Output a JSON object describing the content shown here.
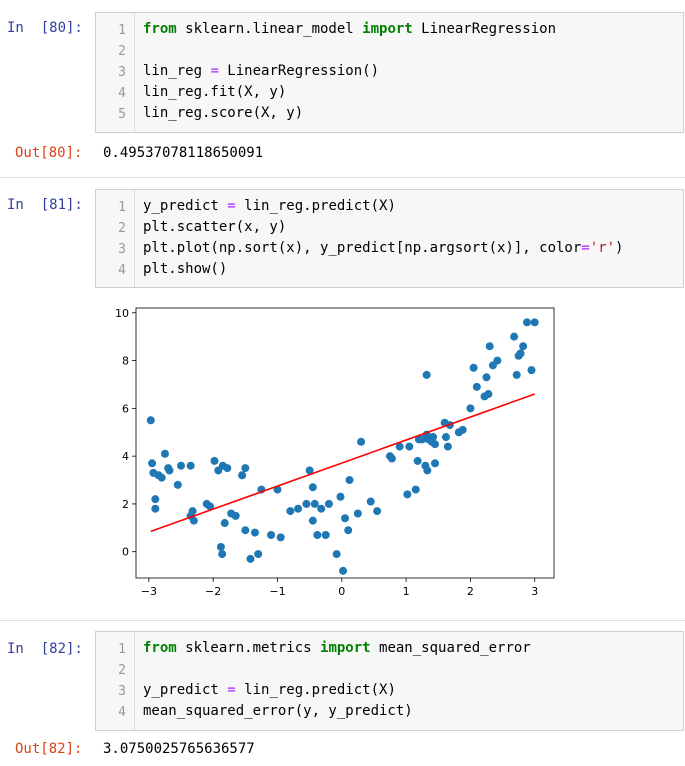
{
  "cells": [
    {
      "in_prompt": "In  [80]:",
      "line_numbers": [
        "1",
        "2",
        "3",
        "4",
        "5"
      ],
      "code": [
        [
          {
            "t": "from",
            "c": "kw"
          },
          {
            "t": " sklearn.linear_model ",
            "c": ""
          },
          {
            "t": "import",
            "c": "kw"
          },
          {
            "t": " LinearRegression",
            "c": ""
          }
        ],
        [],
        [
          {
            "t": "lin_reg ",
            "c": ""
          },
          {
            "t": "=",
            "c": "op"
          },
          {
            "t": " LinearRegression()",
            "c": ""
          }
        ],
        [
          {
            "t": "lin_reg.fit(X, y)",
            "c": ""
          }
        ],
        [
          {
            "t": "lin_reg.score(X, y)",
            "c": ""
          }
        ]
      ],
      "out_prompt": "Out[80]:",
      "output": "0.49537078118650091"
    },
    {
      "in_prompt": "In  [81]:",
      "line_numbers": [
        "1",
        "2",
        "3",
        "4"
      ],
      "code": [
        [
          {
            "t": "y_predict ",
            "c": ""
          },
          {
            "t": "=",
            "c": "op"
          },
          {
            "t": " lin_reg.predict(X)",
            "c": ""
          }
        ],
        [
          {
            "t": "plt.scatter(x, y)",
            "c": ""
          }
        ],
        [
          {
            "t": "plt.plot(np.sort(x), y_predict[np.argsort(x)], color",
            "c": ""
          },
          {
            "t": "=",
            "c": "op"
          },
          {
            "t": "'r'",
            "c": "str"
          },
          {
            "t": ")",
            "c": ""
          }
        ],
        [
          {
            "t": "plt.show()",
            "c": ""
          }
        ]
      ]
    },
    {
      "in_prompt": "In  [82]:",
      "line_numbers": [
        "1",
        "2",
        "3",
        "4"
      ],
      "code": [
        [
          {
            "t": "from",
            "c": "kw"
          },
          {
            "t": " sklearn.metrics ",
            "c": ""
          },
          {
            "t": "import",
            "c": "kw"
          },
          {
            "t": " mean_squared_error",
            "c": ""
          }
        ],
        [],
        [
          {
            "t": "y_predict ",
            "c": ""
          },
          {
            "t": "=",
            "c": "op"
          },
          {
            "t": " lin_reg.predict(X)",
            "c": ""
          }
        ],
        [
          {
            "t": "mean_squared_error(y, y_predict)",
            "c": ""
          }
        ]
      ],
      "out_prompt": "Out[82]:",
      "output": "3.0750025765636577"
    }
  ],
  "colors": {
    "scatter": "#1f77b4",
    "line": "#ff0000",
    "in_prompt": "#303f9f",
    "out_prompt": "#d84315"
  },
  "chart_data": {
    "type": "scatter",
    "xlim": [
      -3.2,
      3.3
    ],
    "ylim": [
      -1.1,
      10.2
    ],
    "xticks": [
      -3,
      -2,
      -1,
      0,
      1,
      2,
      3
    ],
    "yticks": [
      0,
      2,
      4,
      6,
      8,
      10
    ],
    "grid": false,
    "points": [
      [
        -2.97,
        5.5
      ],
      [
        -2.95,
        3.7
      ],
      [
        -2.93,
        3.3
      ],
      [
        -2.9,
        2.2
      ],
      [
        -2.9,
        1.8
      ],
      [
        -2.85,
        3.2
      ],
      [
        -2.8,
        3.1
      ],
      [
        -2.75,
        4.1
      ],
      [
        -2.7,
        3.5
      ],
      [
        -2.68,
        3.4
      ],
      [
        -2.55,
        2.8
      ],
      [
        -2.5,
        3.6
      ],
      [
        -2.35,
        3.6
      ],
      [
        -2.35,
        1.5
      ],
      [
        -2.32,
        1.7
      ],
      [
        -2.3,
        1.3
      ],
      [
        -2.1,
        2.0
      ],
      [
        -2.05,
        1.9
      ],
      [
        -1.98,
        3.8
      ],
      [
        -1.92,
        3.4
      ],
      [
        -1.85,
        3.6
      ],
      [
        -1.88,
        0.2
      ],
      [
        -1.86,
        -0.1
      ],
      [
        -1.82,
        1.2
      ],
      [
        -1.78,
        3.5
      ],
      [
        -1.72,
        1.6
      ],
      [
        -1.65,
        1.5
      ],
      [
        -1.55,
        3.2
      ],
      [
        -1.5,
        3.5
      ],
      [
        -1.5,
        0.9
      ],
      [
        -1.42,
        -0.3
      ],
      [
        -1.35,
        0.8
      ],
      [
        -1.3,
        -0.1
      ],
      [
        -1.25,
        2.6
      ],
      [
        -1.1,
        0.7
      ],
      [
        -0.95,
        0.6
      ],
      [
        -1.0,
        2.6
      ],
      [
        -0.8,
        1.7
      ],
      [
        -0.68,
        1.8
      ],
      [
        -0.55,
        2.0
      ],
      [
        -0.5,
        3.4
      ],
      [
        -0.45,
        2.7
      ],
      [
        -0.45,
        1.3
      ],
      [
        -0.42,
        2.0
      ],
      [
        -0.38,
        0.7
      ],
      [
        -0.32,
        1.8
      ],
      [
        -0.2,
        2.0
      ],
      [
        -0.25,
        0.7
      ],
      [
        -0.08,
        -0.1
      ],
      [
        -0.02,
        2.3
      ],
      [
        0.02,
        -0.8
      ],
      [
        0.05,
        1.4
      ],
      [
        0.1,
        0.9
      ],
      [
        0.12,
        3.0
      ],
      [
        0.25,
        1.6
      ],
      [
        0.3,
        4.6
      ],
      [
        0.45,
        2.1
      ],
      [
        0.55,
        1.7
      ],
      [
        0.75,
        4.0
      ],
      [
        0.78,
        3.9
      ],
      [
        0.9,
        4.4
      ],
      [
        1.02,
        2.4
      ],
      [
        1.05,
        4.4
      ],
      [
        1.15,
        2.6
      ],
      [
        1.18,
        3.8
      ],
      [
        1.2,
        4.7
      ],
      [
        1.25,
        4.7
      ],
      [
        1.3,
        3.6
      ],
      [
        1.33,
        3.4
      ],
      [
        1.32,
        4.9
      ],
      [
        1.35,
        4.7
      ],
      [
        1.4,
        4.6
      ],
      [
        1.42,
        4.8
      ],
      [
        1.45,
        4.5
      ],
      [
        1.45,
        3.7
      ],
      [
        1.32,
        7.4
      ],
      [
        1.6,
        5.4
      ],
      [
        1.62,
        4.8
      ],
      [
        1.65,
        4.4
      ],
      [
        1.68,
        5.3
      ],
      [
        1.82,
        5.0
      ],
      [
        1.88,
        5.1
      ],
      [
        2.0,
        6.0
      ],
      [
        2.05,
        7.7
      ],
      [
        2.1,
        6.9
      ],
      [
        2.22,
        6.5
      ],
      [
        2.25,
        7.3
      ],
      [
        2.28,
        6.6
      ],
      [
        2.3,
        8.6
      ],
      [
        2.35,
        7.8
      ],
      [
        2.42,
        8.0
      ],
      [
        2.68,
        9.0
      ],
      [
        2.72,
        7.4
      ],
      [
        2.75,
        8.2
      ],
      [
        2.78,
        8.3
      ],
      [
        2.82,
        8.6
      ],
      [
        2.88,
        9.6
      ],
      [
        2.95,
        7.6
      ],
      [
        3.0,
        9.6
      ]
    ],
    "line": {
      "x": [
        -2.97,
        3.0
      ],
      "y": [
        0.85,
        6.6
      ]
    }
  }
}
